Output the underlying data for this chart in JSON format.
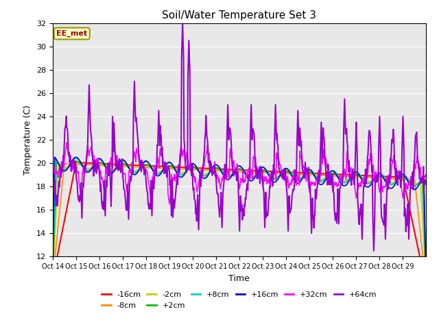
{
  "title": "Soil/Water Temperature Set 3",
  "xlabel": "Time",
  "ylabel": "Temperature (C)",
  "ylim": [
    12,
    32
  ],
  "yticks": [
    12,
    14,
    16,
    18,
    20,
    22,
    24,
    26,
    28,
    30,
    32
  ],
  "bg_color": "#e8e8e8",
  "series_colors": {
    "-16cm": "#ff0000",
    "-8cm": "#ff8800",
    "-2cm": "#cccc00",
    "+2cm": "#00bb00",
    "+8cm": "#00cccc",
    "+16cm": "#0000cc",
    "+32cm": "#ff00ff",
    "+64cm": "#9900cc"
  },
  "xtick_labels": [
    "Oct 14",
    "Oct 15",
    "Oct 16",
    "Oct 17",
    "Oct 18",
    "Oct 19",
    "Oct 20",
    "Oct 21",
    "Oct 22",
    "Oct 23",
    "Oct 24",
    "Oct 25",
    "Oct 26",
    "Oct 27",
    "Oct 28",
    "Oct 29"
  ],
  "annotation_text": "EE_met",
  "legend_order": [
    "-16cm",
    "-8cm",
    "-2cm",
    "+2cm",
    "+8cm",
    "+16cm",
    "+32cm",
    "+64cm"
  ]
}
